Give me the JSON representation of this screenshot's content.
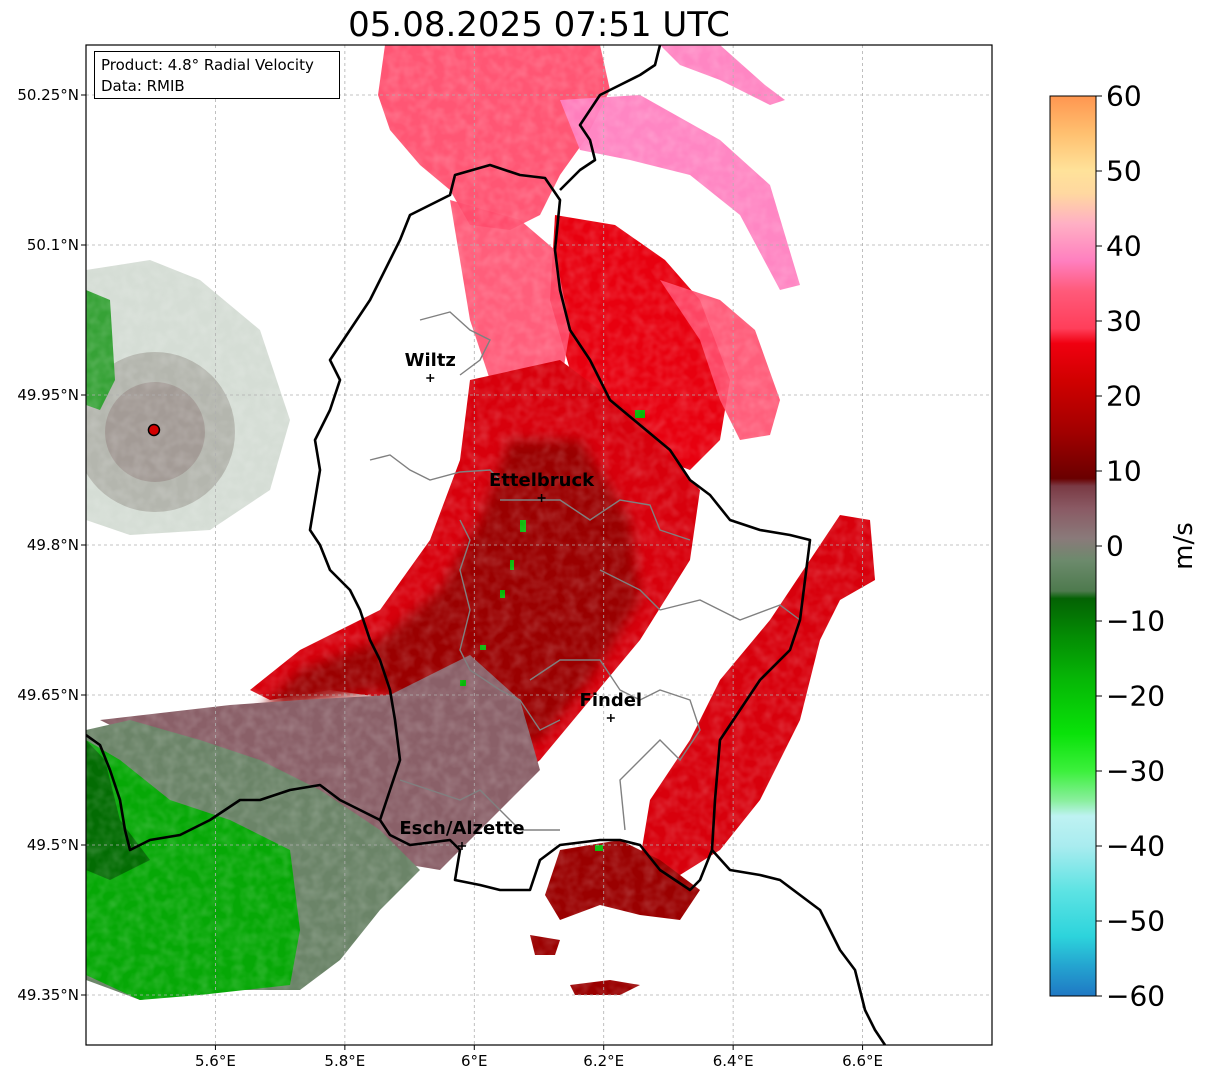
{
  "title": "05.08.2025 07:51 UTC",
  "info_box": {
    "product": "Product: 4.8° Radial Velocity",
    "data": "Data: RMIB"
  },
  "map": {
    "lon_range": [
      5.4,
      6.8
    ],
    "lat_range": [
      49.3,
      50.3
    ],
    "x_ticks": [
      {
        "value": 5.6,
        "label": "5.6°E"
      },
      {
        "value": 5.8,
        "label": "5.8°E"
      },
      {
        "value": 6.0,
        "label": "6°E"
      },
      {
        "value": 6.2,
        "label": "6.2°E"
      },
      {
        "value": 6.4,
        "label": "6.4°E"
      },
      {
        "value": 6.6,
        "label": "6.6°E"
      }
    ],
    "y_ticks": [
      {
        "value": 50.25,
        "label": "50.25°N"
      },
      {
        "value": 50.1,
        "label": "50.1°N"
      },
      {
        "value": 49.95,
        "label": "49.95°N"
      },
      {
        "value": 49.8,
        "label": "49.8°N"
      },
      {
        "value": 49.65,
        "label": "49.65°N"
      },
      {
        "value": 49.5,
        "label": "49.5°N"
      },
      {
        "value": 49.35,
        "label": "49.35°N"
      }
    ],
    "grid": true,
    "radar_site": {
      "lon": 5.505,
      "lat": 49.915
    },
    "cities": [
      {
        "name": "Wiltz",
        "lon": 5.932,
        "lat": 49.967
      },
      {
        "name": "Ettelbruck",
        "lon": 6.104,
        "lat": 49.847
      },
      {
        "name": "Findel",
        "lon": 6.211,
        "lat": 49.627
      },
      {
        "name": "Esch/Alzette",
        "lon": 5.981,
        "lat": 49.499
      }
    ]
  },
  "colorbar": {
    "label": "m/s",
    "min": -60,
    "max": 60,
    "ticks": [
      60,
      50,
      40,
      30,
      20,
      10,
      0,
      -10,
      -20,
      -30,
      -40,
      -50,
      -60
    ],
    "tick_labels": [
      "60",
      "50",
      "40",
      "30",
      "20",
      "10",
      "0",
      "−10",
      "−20",
      "−30",
      "−40",
      "−50",
      "−60"
    ],
    "stops": [
      {
        "v": -60,
        "c": "#1f78c4"
      },
      {
        "v": -56,
        "c": "#24a4d0"
      },
      {
        "v": -52,
        "c": "#2dd4dc"
      },
      {
        "v": -46,
        "c": "#5de3e3"
      },
      {
        "v": -40,
        "c": "#a9ecef"
      },
      {
        "v": -36,
        "c": "#bef2f2"
      },
      {
        "v": -34,
        "c": "#8bef9f"
      },
      {
        "v": -30,
        "c": "#3cf03c"
      },
      {
        "v": -25,
        "c": "#09e209"
      },
      {
        "v": -18,
        "c": "#06b806"
      },
      {
        "v": -12,
        "c": "#048c04"
      },
      {
        "v": -7,
        "c": "#046204"
      },
      {
        "v": -6,
        "c": "#4e7a4e"
      },
      {
        "v": -2,
        "c": "#6c8a6c"
      },
      {
        "v": 1,
        "c": "#8a7a7a"
      },
      {
        "v": 5,
        "c": "#8a5a64"
      },
      {
        "v": 8,
        "c": "#7a3a44"
      },
      {
        "v": 9,
        "c": "#6a0000"
      },
      {
        "v": 15,
        "c": "#a00000"
      },
      {
        "v": 22,
        "c": "#d00000"
      },
      {
        "v": 27,
        "c": "#f00010"
      },
      {
        "v": 29,
        "c": "#ff3e5a"
      },
      {
        "v": 34,
        "c": "#ff5a7a"
      },
      {
        "v": 38,
        "c": "#ff7fbf"
      },
      {
        "v": 43,
        "c": "#ffb0c4"
      },
      {
        "v": 47,
        "c": "#ffd8a0"
      },
      {
        "v": 50,
        "c": "#ffe29a"
      },
      {
        "v": 55,
        "c": "#ffc070"
      },
      {
        "v": 60,
        "c": "#ff9650"
      }
    ]
  },
  "colors": {
    "dark_red": "#9a0000",
    "red": "#e00010",
    "pink": "#ff4d6d",
    "light_pink": "#ff80c0",
    "mauve": "#8a6068",
    "gray_green": "#6b8468",
    "green": "#06a806",
    "border": "#000000",
    "canton_line": "#808080"
  }
}
